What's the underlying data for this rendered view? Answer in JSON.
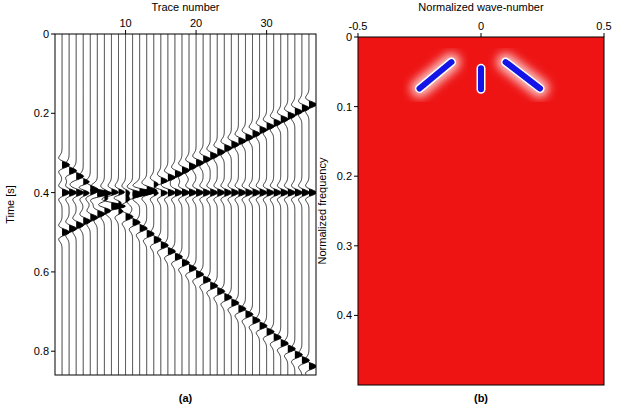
{
  "chart_data": [
    {
      "type": "wiggle",
      "panel": "(a)",
      "x_label": "Trace number",
      "y_label": "Time [s]",
      "xlim": [
        0,
        37
      ],
      "ylim": [
        0.86,
        0
      ],
      "xticks": [
        10,
        20,
        30
      ],
      "yticks": [
        0,
        0.2,
        0.4,
        0.6,
        0.8
      ],
      "color": "#000000",
      "x": [
        1,
        2,
        3,
        4,
        5,
        6,
        7,
        8,
        9,
        10,
        11,
        12,
        13,
        14,
        15,
        16,
        17,
        18,
        19,
        20,
        21,
        22,
        23,
        24,
        25,
        26,
        27,
        28,
        29,
        30,
        31,
        32,
        33,
        34,
        35,
        36
      ],
      "series": [
        {
          "values": [
            0.33,
            0.345,
            0.359,
            0.374,
            0.388,
            0.403,
            0.417,
            0.432,
            0.446,
            0.461,
            0.475,
            0.49,
            0.504,
            0.519,
            0.533,
            0.548,
            0.562,
            0.577,
            0.591,
            0.606,
            0.62,
            0.635,
            0.649,
            0.664,
            0.678,
            0.693,
            0.707,
            0.722,
            0.736,
            0.751,
            0.765,
            0.78,
            0.794,
            0.809,
            0.823,
            0.838
          ]
        },
        {
          "values": [
            0.5,
            0.491,
            0.482,
            0.472,
            0.463,
            0.454,
            0.445,
            0.436,
            0.426,
            0.417,
            0.408,
            0.399,
            0.39,
            0.38,
            0.371,
            0.362,
            0.353,
            0.344,
            0.334,
            0.325,
            0.316,
            0.307,
            0.298,
            0.288,
            0.279,
            0.27,
            0.261,
            0.252,
            0.242,
            0.233,
            0.224,
            0.215,
            0.206,
            0.196,
            0.187,
            0.178
          ]
        },
        {
          "values": [
            0.4,
            0.4,
            0.4,
            0.4,
            0.4,
            0.4,
            0.4,
            0.4,
            0.4,
            0.4,
            0.4,
            0.4,
            0.4,
            0.4,
            0.4,
            0.4,
            0.4,
            0.4,
            0.4,
            0.4,
            0.4,
            0.4,
            0.4,
            0.4,
            0.4,
            0.4,
            0.4,
            0.4,
            0.4,
            0.4,
            0.4,
            0.4,
            0.4,
            0.4,
            0.4,
            0.4
          ]
        }
      ]
    },
    {
      "type": "spectrum",
      "panel": "(b)",
      "x_label": "Normalized wave-number",
      "y_label": "Normalized frequency",
      "xlim": [
        -0.5,
        0.5
      ],
      "ylim": [
        0.5,
        0
      ],
      "xticks": [
        -0.5,
        0,
        0.5
      ],
      "yticks": [
        0,
        0.1,
        0.2,
        0.3,
        0.4
      ],
      "color": "#ee1414",
      "series": [
        {
          "color": "#1414e6",
          "x": [
            -0.25,
            -0.12
          ],
          "values": [
            0.074,
            0.036
          ]
        },
        {
          "color": "#1414e6",
          "x": [
            0,
            0
          ],
          "values": [
            0.045,
            0.075
          ]
        },
        {
          "color": "#1414e6",
          "x": [
            0.1,
            0.24
          ],
          "values": [
            0.036,
            0.074
          ]
        }
      ]
    }
  ]
}
